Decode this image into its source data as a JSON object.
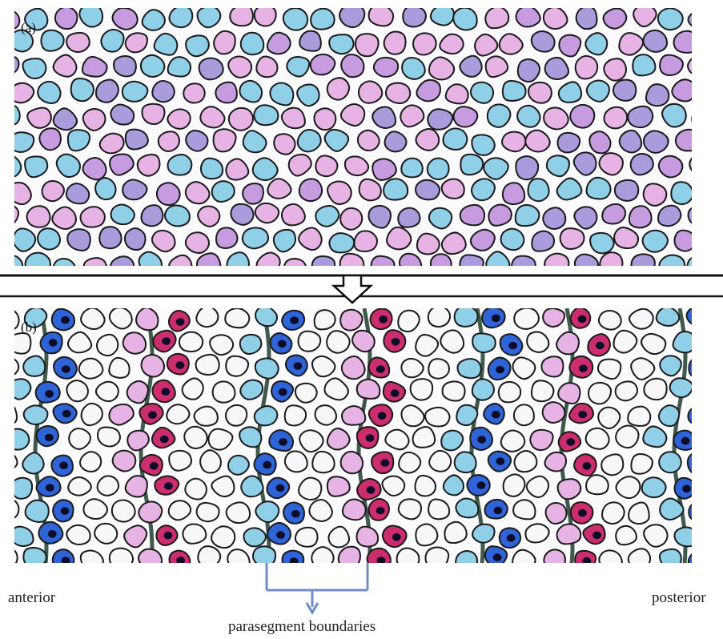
{
  "panels": {
    "a": {
      "label": "(a)"
    },
    "b": {
      "label": "(b)"
    }
  },
  "axis": {
    "anterior": "anterior",
    "posterior": "posterior"
  },
  "annotation": {
    "boundaries": "parasegment boundaries"
  },
  "colors": {
    "light_blue": "#8fd0e8",
    "lavender": "#a99bdc",
    "light_pink": "#e7b3e4",
    "mauve": "#c79be0",
    "white_cell": "#f7f6f8",
    "royal_blue": "#2f63d8",
    "crimson": "#cc2d6c",
    "nucleus": "#0d0d2a",
    "outline": "#1a1a1a",
    "boundary_line": "#3f5a4a",
    "bracket": "#6f8cc4"
  }
}
